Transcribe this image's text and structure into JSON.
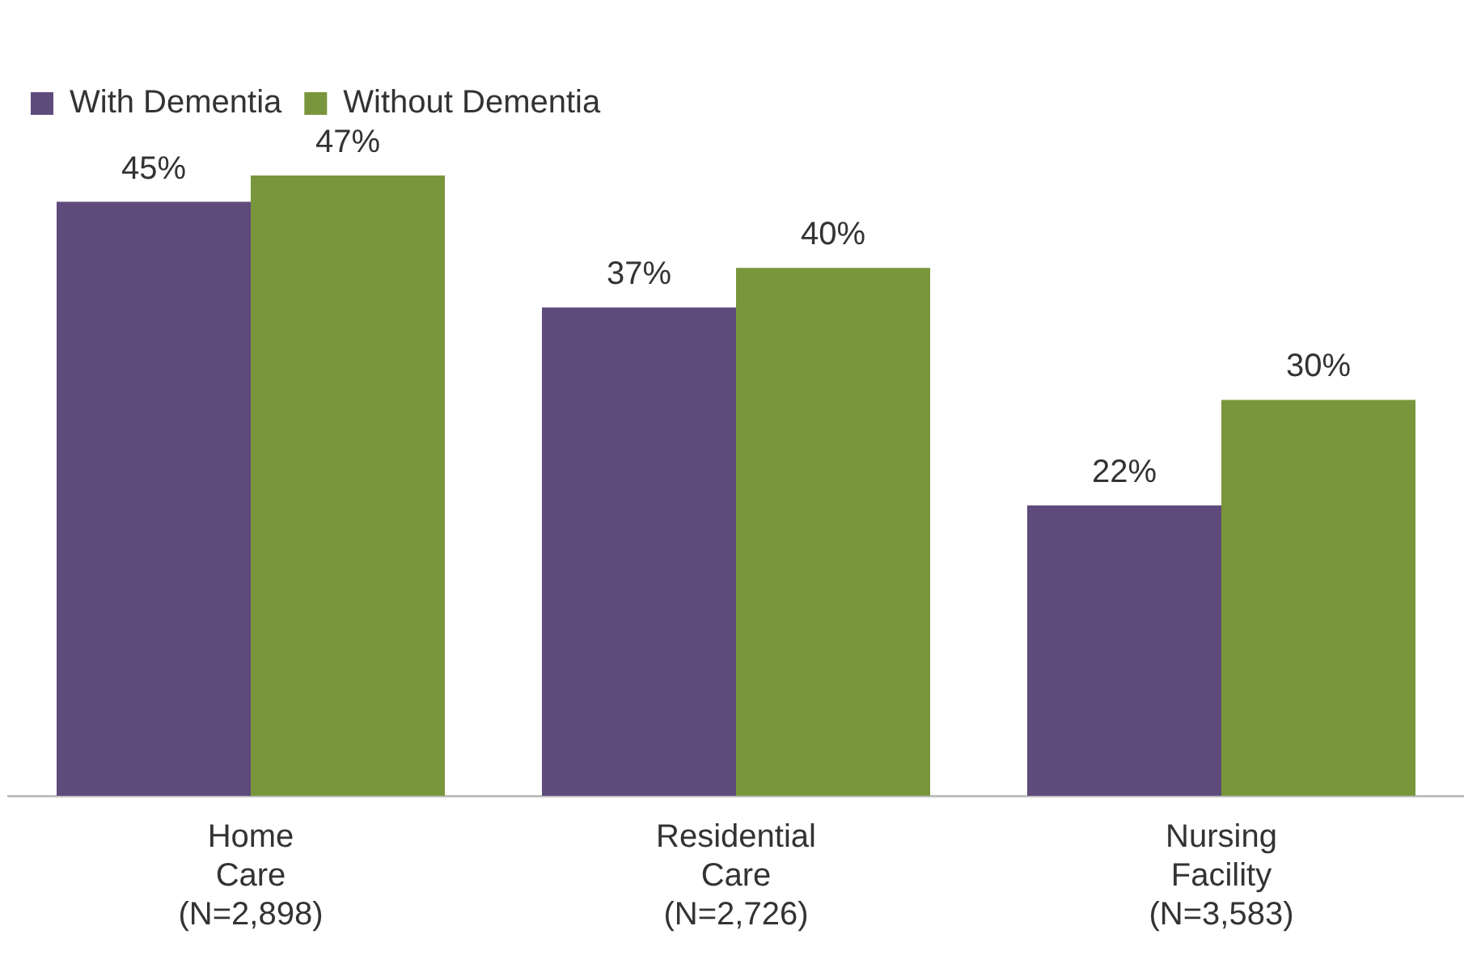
{
  "chart_data": {
    "type": "bar",
    "categories": [
      "Home\nCare\n(N=2,898)",
      "Residential\nCare\n(N=2,726)",
      "Nursing\nFacility\n(N=3,583)"
    ],
    "series": [
      {
        "name": "With Dementia",
        "color": "#5f4b7b",
        "values": [
          45,
          37,
          22
        ],
        "value_labels": [
          "45%",
          "37%",
          "22%"
        ]
      },
      {
        "name": "Without Dementia",
        "color": "#7a963c",
        "values": [
          47,
          40,
          30
        ],
        "value_labels": [
          "47%",
          "40%",
          "30%"
        ]
      }
    ],
    "legend": "top left",
    "grid": false
  }
}
